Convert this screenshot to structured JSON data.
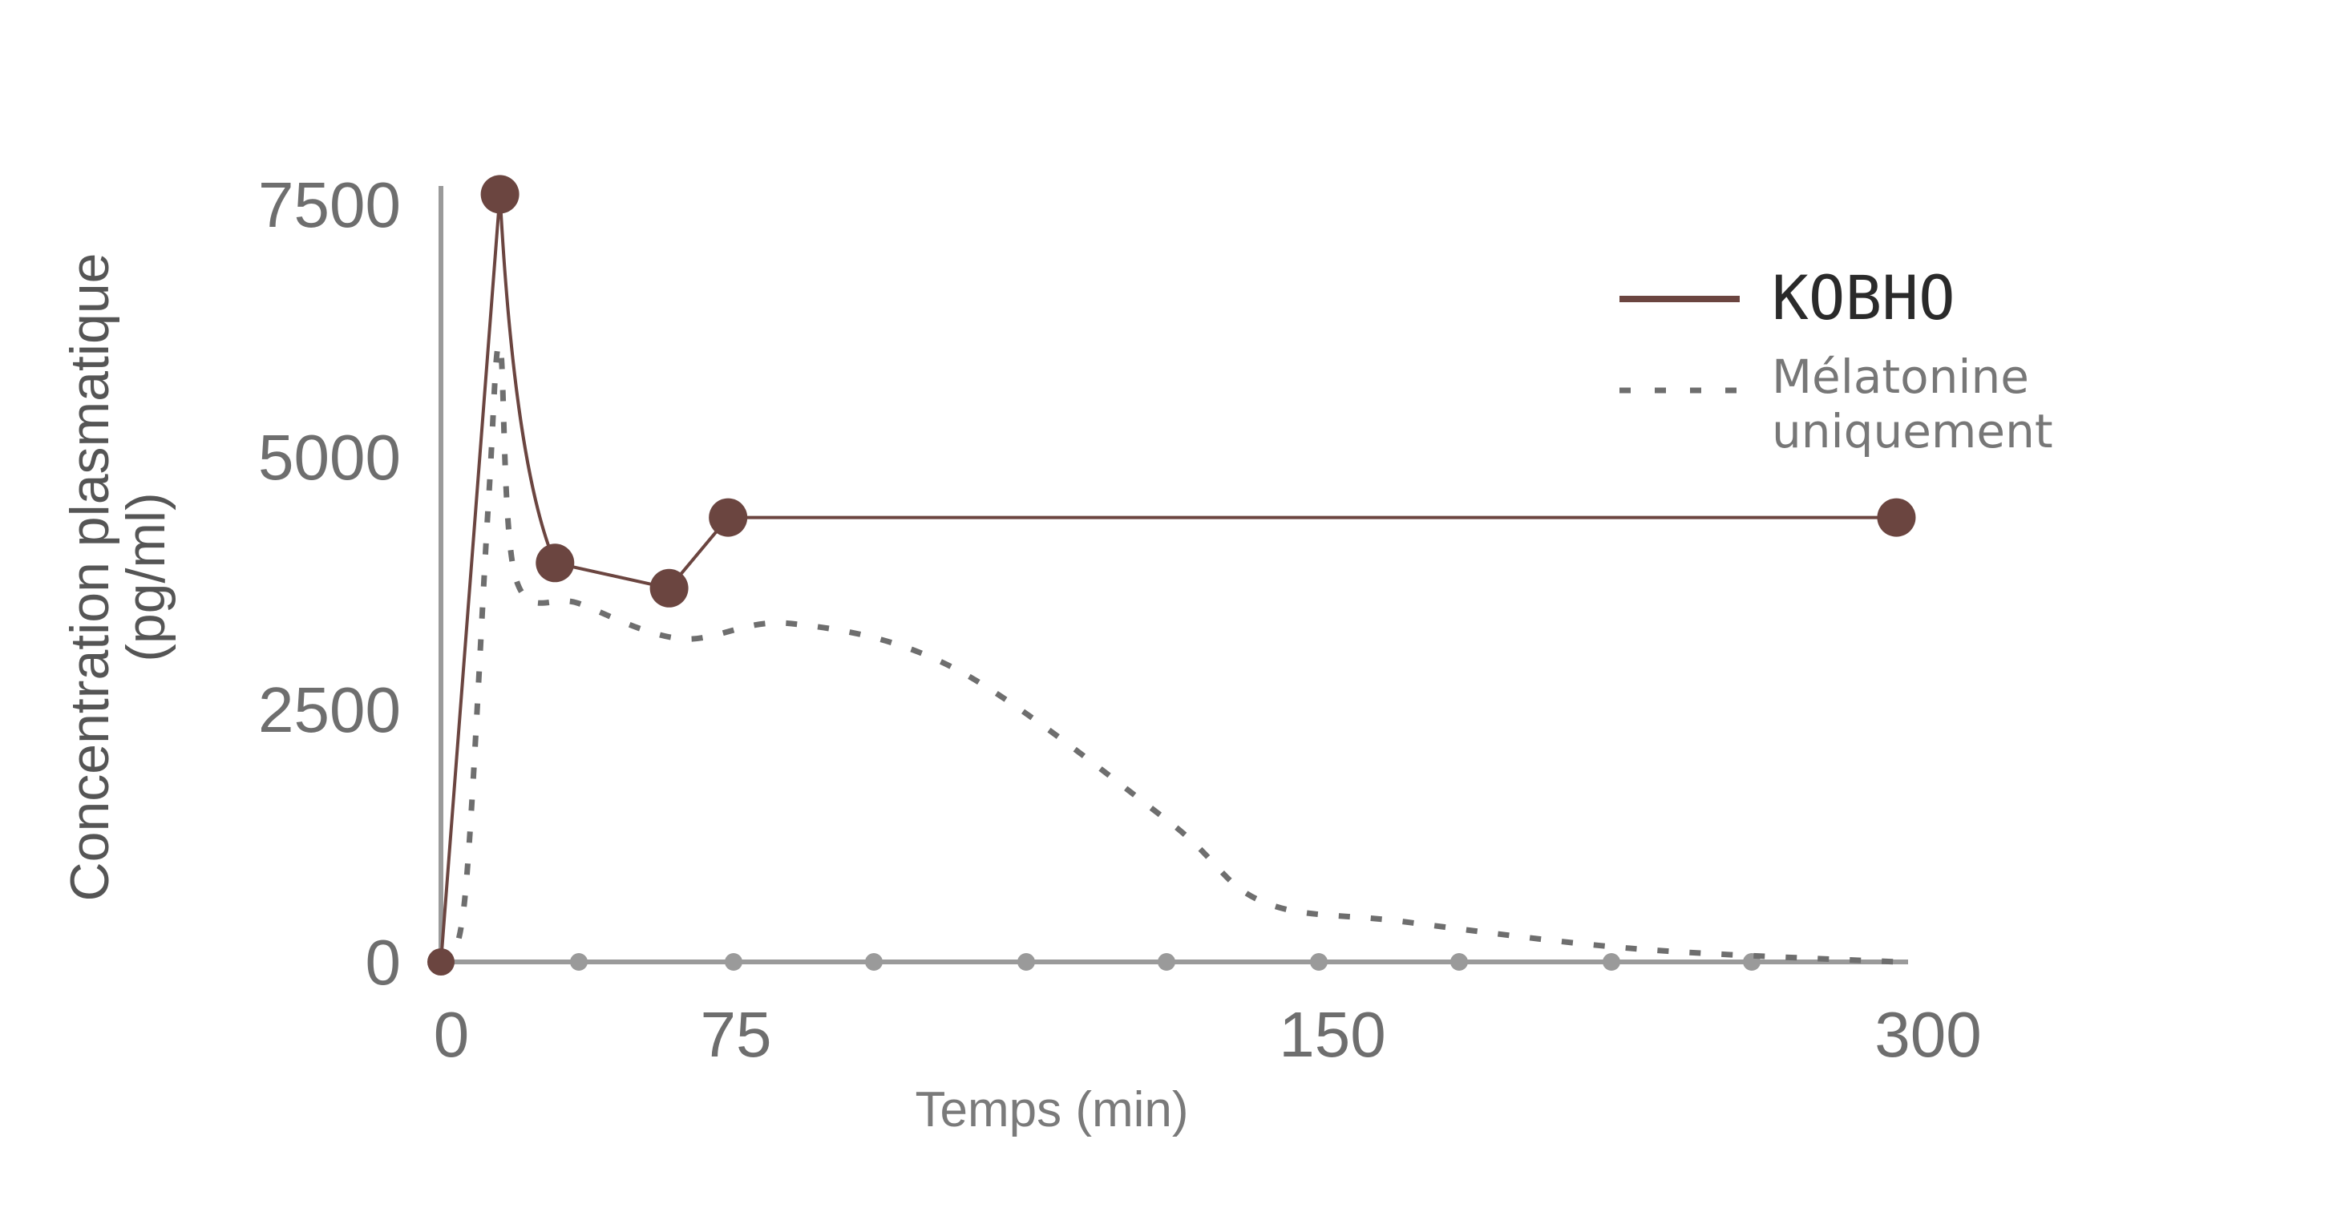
{
  "chart_data": {
    "type": "line",
    "title": "",
    "xlabel": "Temps (min)",
    "ylabel_line1": "Concentration plasmatique",
    "ylabel_line2": "(pg/ml)",
    "x_tick_labels": [
      "0",
      "75",
      "150",
      "300"
    ],
    "y_ticks": [
      0,
      2500,
      5000,
      7500
    ],
    "y_tick_labels": [
      "0",
      "2500",
      "5000",
      "7500"
    ],
    "ylim": [
      0,
      8000
    ],
    "x_scale_note": "non-linear axis",
    "legend_position": "top-right",
    "series": [
      {
        "name": "KOBHO",
        "style": "solid",
        "color": "#6b4540",
        "points": [
          {
            "x": 0,
            "y": 0
          },
          {
            "x": 15,
            "y": 7600
          },
          {
            "x": 29,
            "y": 3950
          },
          {
            "x": 58,
            "y": 3700
          },
          {
            "x": 73,
            "y": 4400
          },
          {
            "x": 297,
            "y": 4400
          }
        ]
      },
      {
        "name": "Mélatonine uniquement",
        "legend_line1": "Mélatonine",
        "legend_line2": "uniquement",
        "style": "dotted",
        "color": "#6e6e6e",
        "points": [
          {
            "x": 0,
            "y": 0
          },
          {
            "x": 6,
            "y": 600
          },
          {
            "x": 12,
            "y": 4500
          },
          {
            "x": 15,
            "y": 6100
          },
          {
            "x": 19,
            "y": 3800
          },
          {
            "x": 35,
            "y": 3550
          },
          {
            "x": 61,
            "y": 3200
          },
          {
            "x": 82,
            "y": 3350
          },
          {
            "x": 103,
            "y": 2900
          },
          {
            "x": 130,
            "y": 1400
          },
          {
            "x": 142,
            "y": 600
          },
          {
            "x": 170,
            "y": 400
          },
          {
            "x": 230,
            "y": 130
          },
          {
            "x": 297,
            "y": 0
          }
        ]
      }
    ],
    "x_axis_markers": [
      0,
      30,
      63,
      93,
      126,
      156,
      189,
      219,
      252,
      282
    ]
  }
}
